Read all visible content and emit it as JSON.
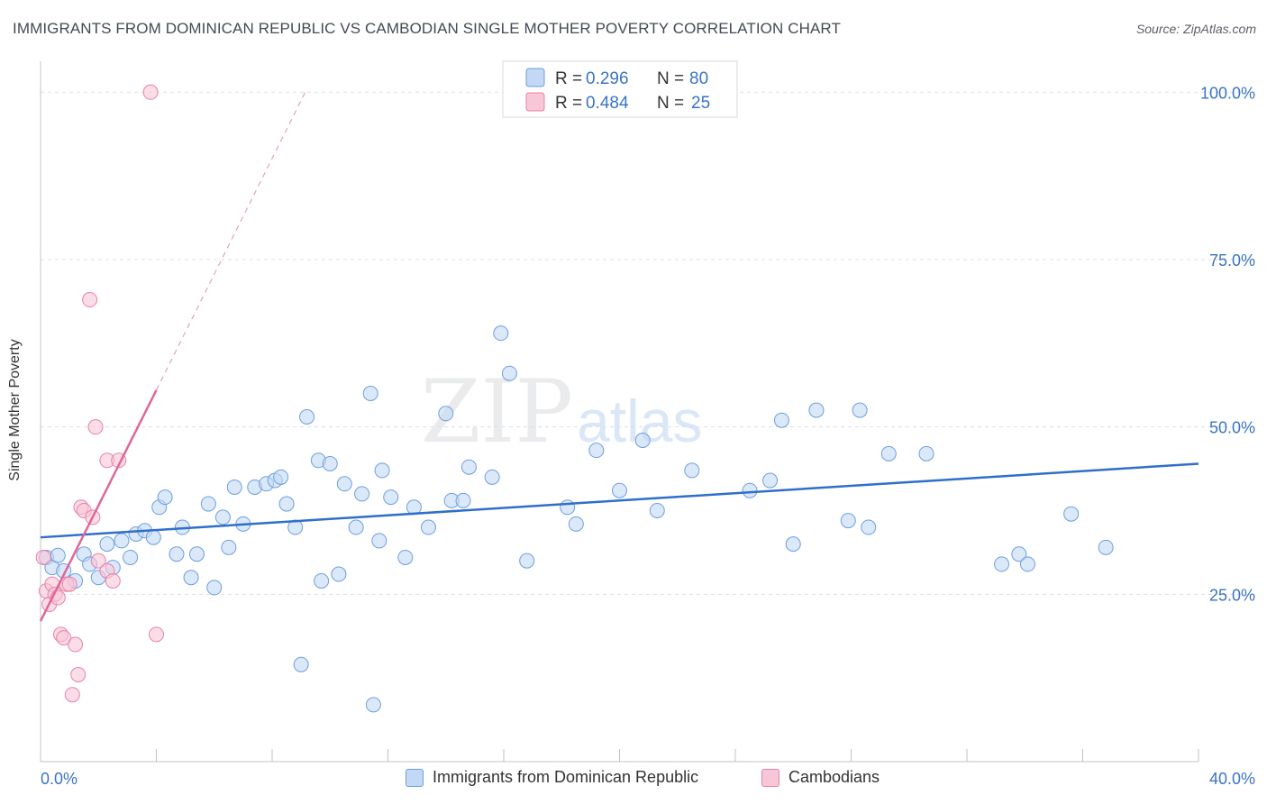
{
  "title": "IMMIGRANTS FROM DOMINICAN REPUBLIC VS CAMBODIAN SINGLE MOTHER POVERTY CORRELATION CHART",
  "source": "Source: ZipAtlas.com",
  "watermark": {
    "zip": "ZIP",
    "atlas": "atlas"
  },
  "legend_top": [
    {
      "r_label": "R =",
      "r_value": "0.296",
      "n_label": "N =",
      "n_value": "80"
    },
    {
      "r_label": "R =",
      "r_value": "0.484",
      "n_label": "N =",
      "n_value": "25"
    }
  ],
  "chart_data": {
    "type": "scatter",
    "xlabel": "",
    "ylabel": "Single Mother Poverty",
    "xlim": [
      0,
      40
    ],
    "ylim": [
      0,
      103
    ],
    "x_tick_labels": [
      {
        "value": 0,
        "label": "0.0%"
      },
      {
        "value": 40,
        "label": "40.0%"
      }
    ],
    "y_tick_labels": [
      {
        "value": 25,
        "label": "25.0%"
      },
      {
        "value": 50,
        "label": "50.0%"
      },
      {
        "value": 75,
        "label": "75.0%"
      },
      {
        "value": 100,
        "label": "100.0%"
      }
    ],
    "series": [
      {
        "name": "Immigrants from Dominican Republic",
        "color": "#6c9fe0",
        "fill": "#c3d8f4",
        "trend": {
          "x0": 0,
          "y0": 33.5,
          "x1": 40,
          "y1": 44.5
        },
        "points": [
          [
            0.2,
            30.5
          ],
          [
            0.4,
            29
          ],
          [
            0.6,
            30.8
          ],
          [
            0.8,
            28.5
          ],
          [
            1.2,
            27
          ],
          [
            1.5,
            31
          ],
          [
            1.7,
            29.5
          ],
          [
            2.0,
            27.5
          ],
          [
            2.3,
            32.5
          ],
          [
            2.5,
            29
          ],
          [
            2.8,
            33
          ],
          [
            3.1,
            30.5
          ],
          [
            3.3,
            34
          ],
          [
            3.6,
            34.5
          ],
          [
            3.9,
            33.5
          ],
          [
            4.1,
            38
          ],
          [
            4.3,
            39.5
          ],
          [
            4.7,
            31
          ],
          [
            4.9,
            35
          ],
          [
            5.2,
            27.5
          ],
          [
            5.4,
            31
          ],
          [
            5.8,
            38.5
          ],
          [
            6.0,
            26
          ],
          [
            6.3,
            36.5
          ],
          [
            6.5,
            32
          ],
          [
            6.7,
            41
          ],
          [
            7.0,
            35.5
          ],
          [
            7.4,
            41
          ],
          [
            7.8,
            41.5
          ],
          [
            8.1,
            42
          ],
          [
            8.3,
            42.5
          ],
          [
            8.5,
            38.5
          ],
          [
            8.8,
            35
          ],
          [
            9.2,
            51.5
          ],
          [
            9.6,
            45
          ],
          [
            9.7,
            27
          ],
          [
            10.0,
            44.5
          ],
          [
            10.3,
            28
          ],
          [
            10.5,
            41.5
          ],
          [
            10.9,
            35
          ],
          [
            11.1,
            40
          ],
          [
            11.4,
            55
          ],
          [
            11.7,
            33
          ],
          [
            11.8,
            43.5
          ],
          [
            12.1,
            39.5
          ],
          [
            12.6,
            30.5
          ],
          [
            12.9,
            38
          ],
          [
            13.4,
            35
          ],
          [
            14.0,
            52
          ],
          [
            14.2,
            39
          ],
          [
            14.6,
            39
          ],
          [
            14.8,
            44
          ],
          [
            15.6,
            42.5
          ],
          [
            15.9,
            64
          ],
          [
            16.2,
            58
          ],
          [
            16.8,
            30
          ],
          [
            18.2,
            38
          ],
          [
            18.5,
            35.5
          ],
          [
            19.2,
            46.5
          ],
          [
            20.0,
            40.5
          ],
          [
            20.8,
            48
          ],
          [
            21.3,
            37.5
          ],
          [
            22.5,
            43.5
          ],
          [
            24.5,
            40.5
          ],
          [
            25.2,
            42
          ],
          [
            25.6,
            51
          ],
          [
            26.0,
            32.5
          ],
          [
            26.8,
            52.5
          ],
          [
            27.9,
            36
          ],
          [
            28.3,
            52.5
          ],
          [
            28.6,
            35
          ],
          [
            29.3,
            46
          ],
          [
            30.6,
            46
          ],
          [
            33.2,
            29.5
          ],
          [
            33.8,
            31
          ],
          [
            34.1,
            29.5
          ],
          [
            35.6,
            37
          ],
          [
            36.8,
            32
          ],
          [
            9.0,
            14.5
          ],
          [
            11.5,
            8.5
          ]
        ]
      },
      {
        "name": "Cambodians",
        "color": "#e881a6",
        "fill": "#f7c7d7",
        "trend": {
          "x0": 0,
          "y0": 21,
          "x1": 4.0,
          "y1": 55.5
        },
        "trend_ext": {
          "x0": 4.0,
          "y0": 55.5,
          "x1": 9.2,
          "y1": 100.5
        },
        "points": [
          [
            0.1,
            30.5
          ],
          [
            0.2,
            25.5
          ],
          [
            0.3,
            23.5
          ],
          [
            0.4,
            26.5
          ],
          [
            0.5,
            25
          ],
          [
            0.6,
            24.5
          ],
          [
            0.7,
            19
          ],
          [
            0.8,
            18.5
          ],
          [
            0.9,
            26.5
          ],
          [
            1.0,
            26.5
          ],
          [
            1.1,
            10
          ],
          [
            1.2,
            17.5
          ],
          [
            1.3,
            13
          ],
          [
            1.4,
            38
          ],
          [
            1.5,
            37.5
          ],
          [
            1.7,
            69
          ],
          [
            1.8,
            36.5
          ],
          [
            1.9,
            50
          ],
          [
            2.0,
            30
          ],
          [
            2.3,
            28.5
          ],
          [
            2.3,
            45
          ],
          [
            2.5,
            27
          ],
          [
            2.7,
            45
          ],
          [
            3.8,
            100
          ],
          [
            4.0,
            19
          ]
        ]
      }
    ]
  }
}
